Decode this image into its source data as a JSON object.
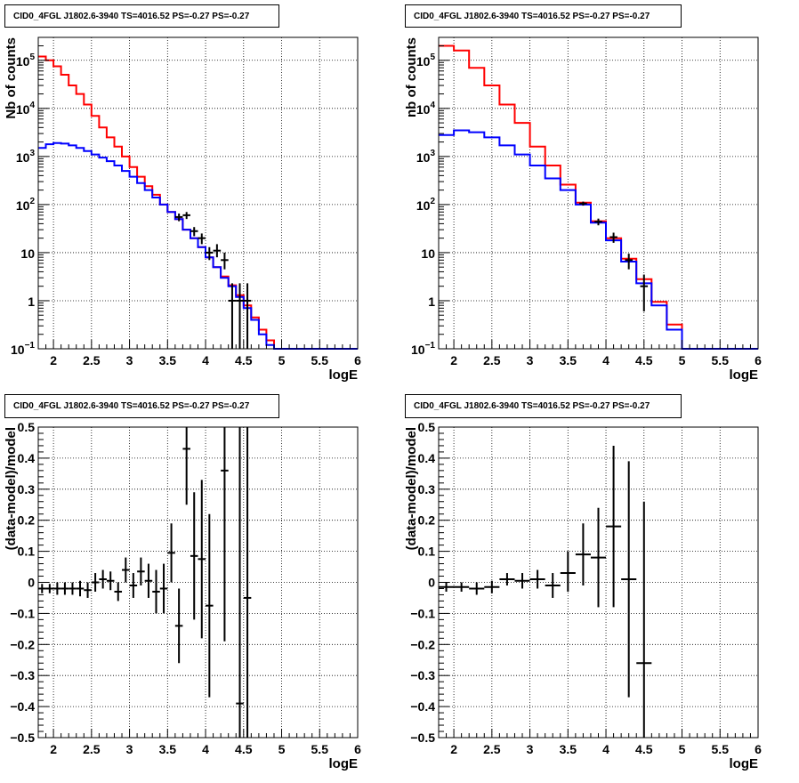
{
  "chart_data": [
    {
      "type": "line",
      "title": "CID0_4FGL J1802.6-3940 TS=4016.52 PS=-0.27 PS=-0.27",
      "xlabel": "logE",
      "ylabel": "Nb of counts",
      "xlim": [
        1.8,
        6
      ],
      "ylim": [
        0.1,
        300000
      ],
      "yscale": "log",
      "grid": true,
      "x_ticks": [
        "2",
        "2.5",
        "3",
        "3.5",
        "4",
        "4.5",
        "5",
        "5.5",
        "6"
      ],
      "y_ticks": [
        {
          "base": "10",
          "exp": "−1",
          "value": 0.1
        },
        {
          "base": "1",
          "exp": "",
          "value": 1
        },
        {
          "base": "10",
          "exp": "",
          "value": 10
        },
        {
          "base": "10",
          "exp": "2",
          "value": 100
        },
        {
          "base": "10",
          "exp": "3",
          "value": 1000
        },
        {
          "base": "10",
          "exp": "4",
          "value": 10000
        },
        {
          "base": "10",
          "exp": "5",
          "value": 100000
        }
      ],
      "bin_edges": [
        1.8,
        1.9,
        2.0,
        2.1,
        2.2,
        2.3,
        2.4,
        2.5,
        2.6,
        2.7,
        2.8,
        2.9,
        3.0,
        3.1,
        3.2,
        3.3,
        3.4,
        3.5,
        3.6,
        3.7,
        3.8,
        3.9,
        4.0,
        4.1,
        4.2,
        4.3,
        4.4,
        4.5,
        4.6,
        4.7,
        4.8,
        4.9,
        5.0,
        5.1,
        5.2,
        5.3,
        5.4,
        5.5,
        5.6,
        5.7,
        5.8,
        5.9,
        6.0
      ],
      "series": [
        {
          "color": "#ff0000",
          "values": [
            120000,
            100000,
            75000,
            50000,
            30000,
            20000,
            12000,
            7000,
            4000,
            2500,
            1600,
            1000,
            600,
            380,
            240,
            160,
            100,
            70,
            50,
            30,
            20,
            13,
            8,
            5,
            3.2,
            2.1,
            1.3,
            0.8,
            0.45,
            0.25,
            0.15,
            0.1,
            0.1,
            0.1,
            0.1,
            0.1,
            0.1,
            0.1,
            0.1,
            0.1,
            0.1,
            0.1
          ]
        },
        {
          "color": "#0000ff",
          "values": [
            1500,
            1800,
            1900,
            1850,
            1700,
            1500,
            1300,
            1100,
            950,
            800,
            650,
            500,
            380,
            280,
            200,
            140,
            100,
            70,
            50,
            30,
            20,
            13,
            8,
            5,
            3,
            2,
            1.2,
            0.7,
            0.4,
            0.2,
            0.12,
            0.1,
            0.1,
            0.1,
            0.1,
            0.1,
            0.1,
            0.1,
            0.1,
            0.1,
            0.1,
            0.1
          ]
        }
      ],
      "points": [
        {
          "x": 3.65,
          "y": 55,
          "ylo": 45,
          "yhi": 65
        },
        {
          "x": 3.75,
          "y": 60,
          "ylo": 50,
          "yhi": 70
        },
        {
          "x": 3.85,
          "y": 28,
          "ylo": 22,
          "yhi": 34
        },
        {
          "x": 3.95,
          "y": 20,
          "ylo": 15,
          "yhi": 25
        },
        {
          "x": 4.05,
          "y": 10,
          "ylo": 7,
          "yhi": 13
        },
        {
          "x": 4.15,
          "y": 11,
          "ylo": 8,
          "yhi": 15
        },
        {
          "x": 4.25,
          "y": 7,
          "ylo": 4.5,
          "yhi": 10
        },
        {
          "x": 4.35,
          "y": 1,
          "ylo": 0.1,
          "yhi": 2.3
        },
        {
          "x": 4.45,
          "y": 1,
          "ylo": 0.1,
          "yhi": 2.3
        },
        {
          "x": 4.55,
          "y": 1,
          "ylo": 0.1,
          "yhi": 2.3
        }
      ]
    },
    {
      "type": "line",
      "title": "CID0_4FGL J1802.6-3940 TS=4016.52 PS=-0.27 PS=-0.27",
      "xlabel": "logE",
      "ylabel": "nb of counts",
      "xlim": [
        1.8,
        6
      ],
      "ylim": [
        0.1,
        300000
      ],
      "yscale": "log",
      "grid": true,
      "x_ticks": [
        "2",
        "2.5",
        "3",
        "3.5",
        "4",
        "4.5",
        "5",
        "5.5",
        "6"
      ],
      "y_ticks": [
        {
          "base": "10",
          "exp": "−1",
          "value": 0.1
        },
        {
          "base": "1",
          "exp": "",
          "value": 1
        },
        {
          "base": "10",
          "exp": "",
          "value": 10
        },
        {
          "base": "10",
          "exp": "2",
          "value": 100
        },
        {
          "base": "10",
          "exp": "3",
          "value": 1000
        },
        {
          "base": "10",
          "exp": "4",
          "value": 10000
        },
        {
          "base": "10",
          "exp": "5",
          "value": 100000
        }
      ],
      "bin_edges": [
        1.8,
        2.0,
        2.2,
        2.4,
        2.6,
        2.8,
        3.0,
        3.2,
        3.4,
        3.6,
        3.8,
        4.0,
        4.2,
        4.4,
        4.6,
        4.8,
        5.0,
        5.2,
        5.4,
        5.6,
        5.8,
        6.0
      ],
      "series": [
        {
          "color": "#ff0000",
          "values": [
            200000,
            160000,
            70000,
            30000,
            12000,
            5000,
            1600,
            650,
            260,
            110,
            45,
            20,
            7.5,
            2.8,
            0.95,
            0.32,
            0.1,
            0.1,
            0.1,
            0.1,
            0.1
          ]
        },
        {
          "color": "#0000ff",
          "values": [
            2800,
            3500,
            3200,
            2500,
            1700,
            1100,
            650,
            350,
            200,
            100,
            42,
            18,
            6.5,
            2.3,
            0.8,
            0.25,
            0.1,
            0.1,
            0.1,
            0.1,
            0.1
          ]
        }
      ],
      "points": [
        {
          "x": 3.7,
          "y": 105,
          "ylo": 95,
          "yhi": 115
        },
        {
          "x": 3.9,
          "y": 44,
          "ylo": 37,
          "yhi": 51
        },
        {
          "x": 4.1,
          "y": 21,
          "ylo": 16,
          "yhi": 26
        },
        {
          "x": 4.3,
          "y": 7,
          "ylo": 4.5,
          "yhi": 9.5
        },
        {
          "x": 4.5,
          "y": 2,
          "ylo": 0.6,
          "yhi": 3.5
        }
      ]
    },
    {
      "type": "scatter",
      "title": "CID0_4FGL J1802.6-3940 TS=4016.52 PS=-0.27 PS=-0.27",
      "xlabel": "logE",
      "ylabel": "(data-model)/model",
      "xlim": [
        1.8,
        6
      ],
      "ylim": [
        -0.5,
        0.5
      ],
      "grid": true,
      "x_ticks": [
        "2",
        "2.5",
        "3",
        "3.5",
        "4",
        "4.5",
        "5",
        "5.5",
        "6"
      ],
      "y_ticks": [
        "−0.5",
        "−0.4",
        "−0.3",
        "−0.2",
        "−0.1",
        "0",
        "0.1",
        "0.2",
        "0.3",
        "0.4",
        "0.5"
      ],
      "points": [
        {
          "x": 1.85,
          "y": -0.02,
          "ylo": -0.035,
          "yhi": -0.005,
          "xw": 0.05
        },
        {
          "x": 1.95,
          "y": -0.02,
          "ylo": -0.035,
          "yhi": -0.005,
          "xw": 0.05
        },
        {
          "x": 2.05,
          "y": -0.02,
          "ylo": -0.04,
          "yhi": 0.0,
          "xw": 0.05
        },
        {
          "x": 2.15,
          "y": -0.02,
          "ylo": -0.04,
          "yhi": 0.0,
          "xw": 0.05
        },
        {
          "x": 2.25,
          "y": -0.02,
          "ylo": -0.04,
          "yhi": 0.0,
          "xw": 0.05
        },
        {
          "x": 2.35,
          "y": -0.02,
          "ylo": -0.045,
          "yhi": 0.005,
          "xw": 0.05
        },
        {
          "x": 2.45,
          "y": -0.025,
          "ylo": -0.05,
          "yhi": 0.0,
          "xw": 0.05
        },
        {
          "x": 2.55,
          "y": 0.0,
          "ylo": -0.03,
          "yhi": 0.03,
          "xw": 0.05
        },
        {
          "x": 2.65,
          "y": 0.01,
          "ylo": -0.02,
          "yhi": 0.04,
          "xw": 0.05
        },
        {
          "x": 2.75,
          "y": 0.005,
          "ylo": -0.025,
          "yhi": 0.035,
          "xw": 0.05
        },
        {
          "x": 2.85,
          "y": -0.03,
          "ylo": -0.06,
          "yhi": 0.0,
          "xw": 0.05
        },
        {
          "x": 2.95,
          "y": 0.04,
          "ylo": 0.0,
          "yhi": 0.08,
          "xw": 0.05
        },
        {
          "x": 3.05,
          "y": -0.01,
          "ylo": -0.05,
          "yhi": 0.03,
          "xw": 0.05
        },
        {
          "x": 3.15,
          "y": 0.035,
          "ylo": -0.01,
          "yhi": 0.08,
          "xw": 0.05
        },
        {
          "x": 3.25,
          "y": 0.005,
          "ylo": -0.05,
          "yhi": 0.06,
          "xw": 0.05
        },
        {
          "x": 3.35,
          "y": -0.03,
          "ylo": -0.1,
          "yhi": 0.04,
          "xw": 0.05
        },
        {
          "x": 3.45,
          "y": -0.02,
          "ylo": -0.1,
          "yhi": 0.06,
          "xw": 0.05
        },
        {
          "x": 3.55,
          "y": 0.095,
          "ylo": 0.0,
          "yhi": 0.19,
          "xw": 0.05
        },
        {
          "x": 3.65,
          "y": -0.14,
          "ylo": -0.26,
          "yhi": -0.02,
          "xw": 0.05
        },
        {
          "x": 3.75,
          "y": 0.43,
          "ylo": 0.25,
          "yhi": 0.5,
          "xw": 0.05
        },
        {
          "x": 3.85,
          "y": 0.085,
          "ylo": -0.12,
          "yhi": 0.29,
          "xw": 0.05
        },
        {
          "x": 3.95,
          "y": 0.075,
          "ylo": -0.18,
          "yhi": 0.33,
          "xw": 0.05
        },
        {
          "x": 4.05,
          "y": -0.075,
          "ylo": -0.37,
          "yhi": 0.22,
          "xw": 0.05
        },
        {
          "x": 4.25,
          "y": 0.36,
          "ylo": -0.19,
          "yhi": 0.5,
          "xw": 0.05
        },
        {
          "x": 4.45,
          "y": -0.39,
          "ylo": -0.5,
          "yhi": 0.5,
          "xw": 0.05
        },
        {
          "x": 4.55,
          "y": -0.05,
          "ylo": -0.5,
          "yhi": 0.5,
          "xw": 0.05
        }
      ]
    },
    {
      "type": "scatter",
      "title": "CID0_4FGL J1802.6-3940 TS=4016.52 PS=-0.27 PS=-0.27",
      "xlabel": "logE",
      "ylabel": "(data-model)/model",
      "xlim": [
        1.8,
        6
      ],
      "ylim": [
        -0.5,
        0.5
      ],
      "grid": true,
      "x_ticks": [
        "2",
        "2.5",
        "3",
        "3.5",
        "4",
        "4.5",
        "5",
        "5.5",
        "6"
      ],
      "y_ticks": [
        "−0.5",
        "−0.4",
        "−0.3",
        "−0.2",
        "−0.1",
        "0",
        "0.1",
        "0.2",
        "0.3",
        "0.4",
        "0.5"
      ],
      "points": [
        {
          "x": 1.9,
          "y": -0.015,
          "ylo": -0.03,
          "yhi": 0.0,
          "xw": 0.1
        },
        {
          "x": 2.1,
          "y": -0.015,
          "ylo": -0.03,
          "yhi": 0.0,
          "xw": 0.1
        },
        {
          "x": 2.3,
          "y": -0.02,
          "ylo": -0.04,
          "yhi": 0.0,
          "xw": 0.1
        },
        {
          "x": 2.5,
          "y": -0.015,
          "ylo": -0.035,
          "yhi": 0.005,
          "xw": 0.1
        },
        {
          "x": 2.7,
          "y": 0.01,
          "ylo": -0.01,
          "yhi": 0.03,
          "xw": 0.1
        },
        {
          "x": 2.9,
          "y": 0.005,
          "ylo": -0.02,
          "yhi": 0.03,
          "xw": 0.1
        },
        {
          "x": 3.1,
          "y": 0.01,
          "ylo": -0.02,
          "yhi": 0.04,
          "xw": 0.1
        },
        {
          "x": 3.3,
          "y": -0.01,
          "ylo": -0.05,
          "yhi": 0.03,
          "xw": 0.1
        },
        {
          "x": 3.5,
          "y": 0.03,
          "ylo": -0.03,
          "yhi": 0.1,
          "xw": 0.1
        },
        {
          "x": 3.7,
          "y": 0.09,
          "ylo": -0.01,
          "yhi": 0.19,
          "xw": 0.1
        },
        {
          "x": 3.9,
          "y": 0.08,
          "ylo": -0.08,
          "yhi": 0.24,
          "xw": 0.1
        },
        {
          "x": 4.1,
          "y": 0.18,
          "ylo": -0.08,
          "yhi": 0.44,
          "xw": 0.1
        },
        {
          "x": 4.3,
          "y": 0.01,
          "ylo": -0.37,
          "yhi": 0.39,
          "xw": 0.1
        },
        {
          "x": 4.5,
          "y": -0.26,
          "ylo": -0.5,
          "yhi": 0.26,
          "xw": 0.1
        }
      ]
    }
  ]
}
